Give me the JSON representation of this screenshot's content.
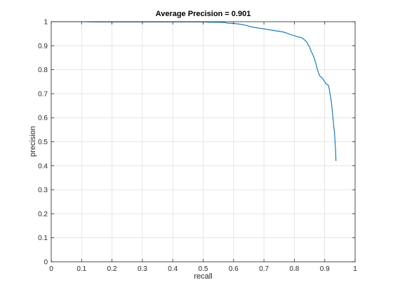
{
  "chart_data": {
    "type": "line",
    "title": "Average Precision = 0.901",
    "xlabel": "recall",
    "ylabel": "precision",
    "xlim": [
      0,
      1
    ],
    "ylim": [
      0,
      1
    ],
    "xticks": [
      "0",
      "0.1",
      "0.2",
      "0.3",
      "0.4",
      "0.5",
      "0.6",
      "0.7",
      "0.8",
      "0.9",
      "1"
    ],
    "yticks": [
      "0",
      "0.1",
      "0.2",
      "0.3",
      "0.4",
      "0.5",
      "0.6",
      "0.7",
      "0.8",
      "0.9",
      "1"
    ],
    "grid": true,
    "legend": "none",
    "series": [
      {
        "color": "#0072bd",
        "x": [
          0,
          0.05,
          0.1,
          0.15,
          0.2,
          0.25,
          0.3,
          0.35,
          0.4,
          0.45,
          0.5,
          0.52,
          0.55,
          0.57,
          0.58,
          0.6,
          0.62,
          0.64,
          0.66,
          0.68,
          0.7,
          0.72,
          0.74,
          0.76,
          0.77,
          0.78,
          0.79,
          0.8,
          0.81,
          0.82,
          0.83,
          0.835,
          0.84,
          0.845,
          0.85,
          0.855,
          0.86,
          0.865,
          0.87,
          0.875,
          0.88,
          0.885,
          0.89,
          0.895,
          0.9,
          0.905,
          0.91,
          0.912,
          0.915,
          0.918,
          0.92,
          0.922,
          0.925,
          0.928,
          0.93,
          0.932,
          0.934,
          0.936,
          0.937
        ],
        "y": [
          1.0,
          1.0,
          1.0,
          0.999,
          0.999,
          0.999,
          0.999,
          0.999,
          0.999,
          0.999,
          0.999,
          0.998,
          0.998,
          0.997,
          0.994,
          0.993,
          0.99,
          0.985,
          0.978,
          0.974,
          0.97,
          0.966,
          0.962,
          0.958,
          0.955,
          0.95,
          0.945,
          0.942,
          0.937,
          0.935,
          0.929,
          0.922,
          0.917,
          0.905,
          0.895,
          0.878,
          0.865,
          0.85,
          0.83,
          0.805,
          0.785,
          0.772,
          0.768,
          0.76,
          0.75,
          0.74,
          0.738,
          0.735,
          0.72,
          0.695,
          0.68,
          0.665,
          0.625,
          0.59,
          0.56,
          0.54,
          0.5,
          0.46,
          0.42
        ]
      }
    ]
  }
}
